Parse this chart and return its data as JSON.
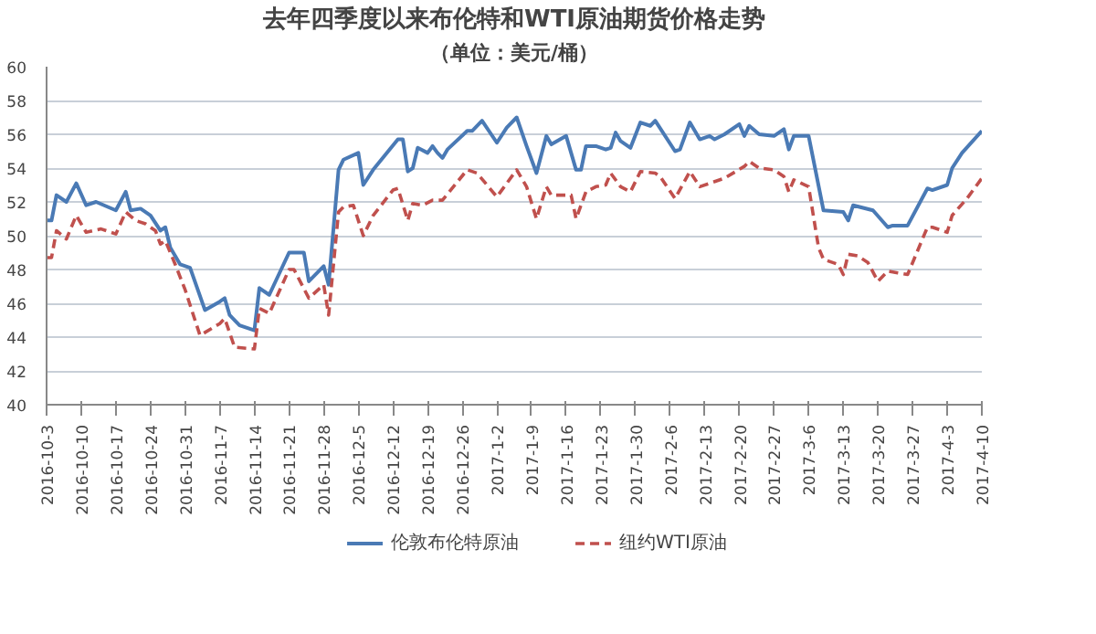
{
  "chart_data": {
    "type": "line",
    "title": "去年四季度以来布伦特和WTI原油期货价格走势",
    "subtitle": "（单位：美元/桶）",
    "xlim": [
      "2016-10-03",
      "2017-04-10"
    ],
    "xticks": [
      {
        "value": "2016-10-03",
        "label": "2016-10-3"
      },
      {
        "value": "2016-10-10",
        "label": "2016-10-10"
      },
      {
        "value": "2016-10-17",
        "label": "2016-10-17"
      },
      {
        "value": "2016-10-24",
        "label": "2016-10-24"
      },
      {
        "value": "2016-10-31",
        "label": "2016-10-31"
      },
      {
        "value": "2016-11-07",
        "label": "2016-11-7"
      },
      {
        "value": "2016-11-14",
        "label": "2016-11-14"
      },
      {
        "value": "2016-11-21",
        "label": "2016-11-21"
      },
      {
        "value": "2016-11-28",
        "label": "2016-11-28"
      },
      {
        "value": "2016-12-05",
        "label": "2016-12-5"
      },
      {
        "value": "2016-12-12",
        "label": "2016-12-12"
      },
      {
        "value": "2016-12-19",
        "label": "2016-12-19"
      },
      {
        "value": "2016-12-26",
        "label": "2016-12-26"
      },
      {
        "value": "2017-01-02",
        "label": "2017-1-2"
      },
      {
        "value": "2017-01-09",
        "label": "2017-1-9"
      },
      {
        "value": "2017-01-16",
        "label": "2017-1-16"
      },
      {
        "value": "2017-01-23",
        "label": "2017-1-23"
      },
      {
        "value": "2017-01-30",
        "label": "2017-1-30"
      },
      {
        "value": "2017-02-06",
        "label": "2017-2-6"
      },
      {
        "value": "2017-02-13",
        "label": "2017-2-13"
      },
      {
        "value": "2017-02-20",
        "label": "2017-2-20"
      },
      {
        "value": "2017-02-27",
        "label": "2017-2-27"
      },
      {
        "value": "2017-03-06",
        "label": "2017-3-6"
      },
      {
        "value": "2017-03-13",
        "label": "2017-3-13"
      },
      {
        "value": "2017-03-20",
        "label": "2017-3-20"
      },
      {
        "value": "2017-03-27",
        "label": "2017-3-27"
      },
      {
        "value": "2017-04-03",
        "label": "2017-4-3"
      },
      {
        "value": "2017-04-10",
        "label": "2017-4-10"
      }
    ],
    "ylim": [
      40,
      60
    ],
    "yticks": [
      40,
      42,
      44,
      46,
      48,
      50,
      52,
      54,
      56,
      58,
      60
    ],
    "grid": "y",
    "legend": "bottom",
    "series": [
      {
        "name": "伦敦布伦特原油",
        "color": "#4a7ab5",
        "line_style": "solid",
        "x": [
          "2016-10-03",
          "2016-10-04",
          "2016-10-05",
          "2016-10-07",
          "2016-10-09",
          "2016-10-11",
          "2016-10-13",
          "2016-10-17",
          "2016-10-19",
          "2016-10-20",
          "2016-10-22",
          "2016-10-24",
          "2016-10-26",
          "2016-10-27",
          "2016-10-28",
          "2016-10-30",
          "2016-11-01",
          "2016-11-04",
          "2016-11-07",
          "2016-11-08",
          "2016-11-09",
          "2016-11-11",
          "2016-11-14",
          "2016-11-15",
          "2016-11-17",
          "2016-11-21",
          "2016-11-24",
          "2016-11-25",
          "2016-11-28",
          "2016-11-29",
          "2016-12-01",
          "2016-12-02",
          "2016-12-05",
          "2016-12-06",
          "2016-12-08",
          "2016-12-13",
          "2016-12-14",
          "2016-12-15",
          "2016-12-16",
          "2016-12-17",
          "2016-12-19",
          "2016-12-20",
          "2016-12-21",
          "2016-12-22",
          "2016-12-23",
          "2016-12-27",
          "2016-12-28",
          "2016-12-30",
          "2017-01-02",
          "2017-01-04",
          "2017-01-06",
          "2017-01-08",
          "2017-01-10",
          "2017-01-12",
          "2017-01-13",
          "2017-01-16",
          "2017-01-17",
          "2017-01-18",
          "2017-01-19",
          "2017-01-20",
          "2017-01-22",
          "2017-01-24",
          "2017-01-25",
          "2017-01-26",
          "2017-01-27",
          "2017-01-29",
          "2017-01-31",
          "2017-02-02",
          "2017-02-03",
          "2017-02-07",
          "2017-02-08",
          "2017-02-10",
          "2017-02-11",
          "2017-02-12",
          "2017-02-14",
          "2017-02-15",
          "2017-02-17",
          "2017-02-20",
          "2017-02-21",
          "2017-02-22",
          "2017-02-24",
          "2017-02-27",
          "2017-03-01",
          "2017-03-02",
          "2017-03-03",
          "2017-03-06",
          "2017-03-09",
          "2017-03-13",
          "2017-03-14",
          "2017-03-15",
          "2017-03-19",
          "2017-03-22",
          "2017-03-23",
          "2017-03-26",
          "2017-03-30",
          "2017-03-31",
          "2017-04-03",
          "2017-04-04",
          "2017-04-06",
          "2017-04-10"
        ],
        "values": [
          50.9,
          50.9,
          52.4,
          52.0,
          53.1,
          51.8,
          52.0,
          51.5,
          52.6,
          51.5,
          51.6,
          51.2,
          50.3,
          50.5,
          49.3,
          48.3,
          48.1,
          45.6,
          46.1,
          46.3,
          45.3,
          44.7,
          44.4,
          46.9,
          46.5,
          49.0,
          49.0,
          47.3,
          48.2,
          47.1,
          53.9,
          54.5,
          54.9,
          53.0,
          53.9,
          55.7,
          55.7,
          53.8,
          54.0,
          55.2,
          54.9,
          55.3,
          54.9,
          54.6,
          55.1,
          56.2,
          56.2,
          56.8,
          55.5,
          56.4,
          57.0,
          55.3,
          53.7,
          55.9,
          55.4,
          55.9,
          54.9,
          53.9,
          53.9,
          55.3,
          55.3,
          55.1,
          55.2,
          56.1,
          55.6,
          55.2,
          56.7,
          56.5,
          56.8,
          55.0,
          55.1,
          56.7,
          56.2,
          55.7,
          55.9,
          55.7,
          56.0,
          56.6,
          55.9,
          56.5,
          56.0,
          55.9,
          56.3,
          55.1,
          55.9,
          55.9,
          51.5,
          51.4,
          50.9,
          51.8,
          51.5,
          50.5,
          50.6,
          50.6,
          52.8,
          52.7,
          53.0,
          54.0,
          54.9,
          56.2
        ]
      },
      {
        "name": "纽约WTI原油",
        "color": "#c0504d",
        "line_style": "dashed",
        "x": [
          "2016-10-03",
          "2016-10-04",
          "2016-10-05",
          "2016-10-07",
          "2016-10-09",
          "2016-10-11",
          "2016-10-14",
          "2016-10-17",
          "2016-10-19",
          "2016-10-21",
          "2016-10-23",
          "2016-10-25",
          "2016-10-26",
          "2016-10-27",
          "2016-10-29",
          "2016-10-31",
          "2016-11-03",
          "2016-11-07",
          "2016-11-08",
          "2016-11-10",
          "2016-11-14",
          "2016-11-15",
          "2016-11-17",
          "2016-11-21",
          "2016-11-22",
          "2016-11-25",
          "2016-11-28",
          "2016-11-29",
          "2016-12-01",
          "2016-12-02",
          "2016-12-04",
          "2016-12-06",
          "2016-12-08",
          "2016-12-12",
          "2016-12-13",
          "2016-12-15",
          "2016-12-16",
          "2016-12-18",
          "2016-12-20",
          "2016-12-22",
          "2016-12-27",
          "2016-12-29",
          "2017-01-02",
          "2017-01-06",
          "2017-01-08",
          "2017-01-10",
          "2017-01-12",
          "2017-01-13",
          "2017-01-17",
          "2017-01-18",
          "2017-01-20",
          "2017-01-22",
          "2017-01-24",
          "2017-01-25",
          "2017-01-27",
          "2017-01-29",
          "2017-01-31",
          "2017-02-03",
          "2017-02-04",
          "2017-02-07",
          "2017-02-10",
          "2017-02-12",
          "2017-02-17",
          "2017-02-21",
          "2017-02-22",
          "2017-02-24",
          "2017-02-27",
          "2017-03-01",
          "2017-03-02",
          "2017-03-03",
          "2017-03-06",
          "2017-03-08",
          "2017-03-09",
          "2017-03-12",
          "2017-03-13",
          "2017-03-14",
          "2017-03-16",
          "2017-03-18",
          "2017-03-20",
          "2017-03-22",
          "2017-03-24",
          "2017-03-26",
          "2017-03-30",
          "2017-03-31",
          "2017-04-03",
          "2017-04-04",
          "2017-04-07",
          "2017-04-10"
        ],
        "values": [
          48.7,
          48.7,
          50.3,
          49.8,
          51.2,
          50.2,
          50.4,
          50.1,
          51.4,
          50.9,
          50.7,
          50.3,
          49.5,
          49.7,
          48.3,
          46.8,
          44.1,
          44.8,
          45.1,
          43.4,
          43.3,
          45.7,
          45.4,
          48.0,
          48.0,
          46.3,
          47.1,
          45.3,
          51.4,
          51.7,
          51.8,
          50.0,
          51.2,
          52.7,
          52.8,
          50.9,
          51.9,
          51.8,
          52.1,
          52.1,
          53.9,
          53.7,
          52.3,
          53.9,
          52.9,
          51.0,
          52.9,
          52.4,
          52.4,
          51.0,
          52.6,
          52.9,
          53.0,
          53.7,
          52.9,
          52.6,
          53.8,
          53.7,
          53.5,
          52.2,
          53.8,
          52.9,
          53.4,
          54.1,
          54.4,
          54.0,
          53.9,
          53.5,
          52.6,
          53.3,
          52.9,
          49.3,
          48.6,
          48.3,
          47.7,
          48.9,
          48.8,
          48.4,
          47.3,
          47.9,
          47.8,
          47.7,
          50.5,
          50.5,
          50.2,
          51.2,
          52.2,
          53.4
        ]
      }
    ]
  }
}
